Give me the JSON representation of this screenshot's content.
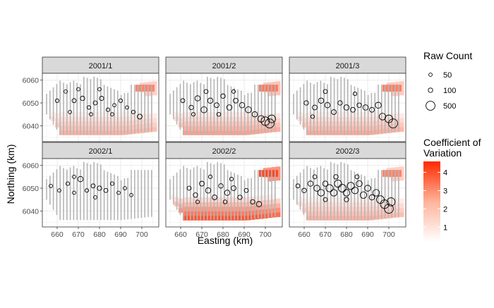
{
  "chart_data": {
    "type": "scatter",
    "title": "",
    "xlabel": "Easting (km)",
    "ylabel": "Northing (km)",
    "xlim": [
      653,
      708
    ],
    "ylim": [
      6033,
      6063
    ],
    "x_ticks": [
      660,
      670,
      680,
      690,
      700
    ],
    "y_ticks": [
      6040,
      6050,
      6060
    ],
    "grid": true,
    "facets": [
      "2001/1",
      "2001/2",
      "2001/3",
      "2002/1",
      "2002/2",
      "2002/3"
    ],
    "legend_placement": "right",
    "size_legend": {
      "title": "Raw Count",
      "entries": [
        {
          "label": "50",
          "value": 50
        },
        {
          "label": "100",
          "value": 100
        },
        {
          "label": "500",
          "value": 500
        }
      ]
    },
    "color_legend": {
      "title": "Coefficient of Variation",
      "title_lines": [
        "Coefficient of",
        "Variation"
      ],
      "ticks": [
        1,
        2,
        3,
        4
      ],
      "tick_labels": [
        "1",
        "2",
        "3",
        "4"
      ],
      "range": [
        0.2,
        4.6
      ],
      "low_color": "#ffffff",
      "high_color": "#ff2a00"
    },
    "surface_intensity": [
      0.45,
      0.55,
      0.5,
      0.0,
      1.0,
      0.45
    ],
    "counts": [
      [
        [
          660,
          6051,
          60
        ],
        [
          664,
          6055,
          50
        ],
        [
          668,
          6051,
          80
        ],
        [
          672,
          6052,
          100
        ],
        [
          675,
          6048,
          60
        ],
        [
          678,
          6050,
          80
        ],
        [
          681,
          6052,
          90
        ],
        [
          684,
          6047,
          60
        ],
        [
          687,
          6049,
          50
        ],
        [
          690,
          6051,
          60
        ],
        [
          693,
          6048,
          50
        ],
        [
          696,
          6046,
          60
        ],
        [
          699,
          6044,
          120
        ],
        [
          666,
          6046,
          50
        ],
        [
          676,
          6045,
          50
        ],
        [
          686,
          6045,
          50
        ],
        [
          670,
          6056,
          50
        ],
        [
          680,
          6056,
          50
        ]
      ],
      [
        [
          661,
          6051,
          80
        ],
        [
          665,
          6048,
          100
        ],
        [
          668,
          6052,
          150
        ],
        [
          671,
          6047,
          200
        ],
        [
          674,
          6051,
          150
        ],
        [
          677,
          6049,
          120
        ],
        [
          680,
          6053,
          100
        ],
        [
          683,
          6048,
          150
        ],
        [
          686,
          6051,
          120
        ],
        [
          689,
          6049,
          150
        ],
        [
          692,
          6047,
          200
        ],
        [
          695,
          6045,
          150
        ],
        [
          698,
          6043,
          250
        ],
        [
          700,
          6042,
          450
        ],
        [
          702,
          6041,
          500
        ],
        [
          703,
          6043,
          350
        ],
        [
          672,
          6055,
          80
        ],
        [
          685,
          6055,
          60
        ],
        [
          666,
          6045,
          60
        ],
        [
          678,
          6045,
          70
        ]
      ],
      [
        [
          661,
          6050,
          100
        ],
        [
          665,
          6048,
          120
        ],
        [
          668,
          6051,
          150
        ],
        [
          671,
          6049,
          150
        ],
        [
          674,
          6046,
          120
        ],
        [
          677,
          6050,
          100
        ],
        [
          680,
          6048,
          150
        ],
        [
          683,
          6047,
          120
        ],
        [
          686,
          6049,
          100
        ],
        [
          689,
          6048,
          150
        ],
        [
          692,
          6047,
          120
        ],
        [
          695,
          6049,
          200
        ],
        [
          697,
          6044,
          250
        ],
        [
          700,
          6043,
          350
        ],
        [
          702,
          6041,
          500
        ],
        [
          670,
          6055,
          80
        ],
        [
          684,
          6054,
          60
        ],
        [
          664,
          6044,
          60
        ]
      ],
      [
        [
          657,
          6051,
          50
        ],
        [
          661,
          6049,
          50
        ],
        [
          665,
          6052,
          60
        ],
        [
          668,
          6048,
          50
        ],
        [
          671,
          6054,
          150
        ],
        [
          674,
          6049,
          60
        ],
        [
          677,
          6051,
          80
        ],
        [
          680,
          6050,
          100
        ],
        [
          683,
          6049,
          80
        ],
        [
          686,
          6052,
          60
        ],
        [
          689,
          6048,
          50
        ],
        [
          692,
          6050,
          50
        ],
        [
          695,
          6047,
          50
        ],
        [
          668,
          6055,
          50
        ],
        [
          678,
          6046,
          50
        ]
      ],
      [
        [
          664,
          6050,
          80
        ],
        [
          667,
          6047,
          100
        ],
        [
          670,
          6052,
          120
        ],
        [
          673,
          6049,
          150
        ],
        [
          676,
          6046,
          120
        ],
        [
          679,
          6051,
          100
        ],
        [
          682,
          6048,
          150
        ],
        [
          685,
          6050,
          120
        ],
        [
          688,
          6046,
          100
        ],
        [
          691,
          6049,
          80
        ],
        [
          694,
          6044,
          100
        ],
        [
          697,
          6043,
          150
        ],
        [
          674,
          6055,
          60
        ],
        [
          684,
          6054,
          60
        ],
        [
          668,
          6044,
          60
        ],
        [
          681,
          6044,
          70
        ]
      ],
      [
        [
          657,
          6051,
          80
        ],
        [
          660,
          6049,
          100
        ],
        [
          663,
          6052,
          150
        ],
        [
          666,
          6050,
          200
        ],
        [
          668,
          6048,
          250
        ],
        [
          670,
          6052,
          150
        ],
        [
          672,
          6050,
          300
        ],
        [
          674,
          6048,
          250
        ],
        [
          676,
          6052,
          300
        ],
        [
          678,
          6050,
          350
        ],
        [
          680,
          6048,
          250
        ],
        [
          682,
          6051,
          300
        ],
        [
          684,
          6049,
          250
        ],
        [
          686,
          6052,
          200
        ],
        [
          688,
          6047,
          250
        ],
        [
          690,
          6050,
          200
        ],
        [
          692,
          6046,
          150
        ],
        [
          694,
          6048,
          250
        ],
        [
          696,
          6045,
          350
        ],
        [
          698,
          6043,
          450
        ],
        [
          700,
          6041,
          500
        ],
        [
          701,
          6044,
          400
        ],
        [
          665,
          6055,
          80
        ],
        [
          675,
          6055,
          100
        ],
        [
          685,
          6055,
          80
        ],
        [
          670,
          6045,
          80
        ],
        [
          680,
          6045,
          100
        ]
      ]
    ]
  }
}
